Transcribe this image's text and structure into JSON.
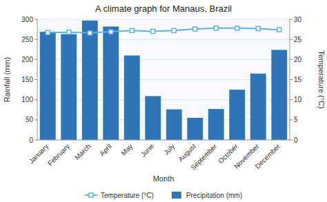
{
  "chart_data": {
    "type": "bar",
    "title": "A climate graph for Manaus, Brazil",
    "categories": [
      "January",
      "February",
      "March",
      "April",
      "May",
      "June",
      "July",
      "August",
      "September",
      "October",
      "November",
      "December"
    ],
    "series": [
      {
        "name": "Temperature (°C)",
        "type": "line",
        "axis": "y2",
        "color": "#5ab4e5",
        "marker": "square",
        "values": [
          26.7,
          26.8,
          26.6,
          26.9,
          27.2,
          27.0,
          27.2,
          27.6,
          27.8,
          27.8,
          27.7,
          27.4
        ]
      },
      {
        "name": "Precipitation (mm)",
        "type": "bar",
        "color": "#2e75b6",
        "values": [
          269,
          263,
          297,
          282,
          210,
          109,
          76,
          55,
          77,
          125,
          165,
          224
        ]
      }
    ],
    "xlabel": "Month",
    "ylabel": "Rainfall (mm)",
    "y2label": "Temperature (°C)",
    "ylim": [
      0,
      300
    ],
    "yticks": [
      0,
      50,
      100,
      150,
      200,
      250,
      300
    ],
    "y2lim": [
      0,
      30
    ],
    "y2ticks": [
      0,
      5,
      10,
      15,
      20,
      25,
      30
    ],
    "grid": true,
    "legend": "bottom"
  }
}
